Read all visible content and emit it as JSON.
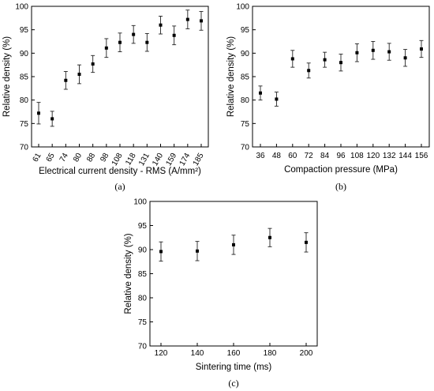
{
  "chart_data": [
    {
      "type": "scatter",
      "panel_label": "(a)",
      "xlabel": "Electrical current density - RMS (A/mm²)",
      "ylabel": "Relative density (%)",
      "ylim": [
        70,
        100
      ],
      "yticks": [
        "70",
        "75",
        "80",
        "85",
        "90",
        "95",
        "100"
      ],
      "categories": [
        "61",
        "65",
        "74",
        "80",
        "88",
        "98",
        "108",
        "118",
        "131",
        "140",
        "159",
        "174",
        "185"
      ],
      "values": [
        77.2,
        76.0,
        84.2,
        85.5,
        87.7,
        91.1,
        92.3,
        94.0,
        92.3,
        96.0,
        93.8,
        97.2,
        96.9
      ],
      "errors": [
        2.3,
        1.6,
        1.9,
        2.0,
        1.8,
        2.0,
        2.0,
        1.9,
        1.9,
        1.9,
        2.0,
        2.0,
        2.0
      ],
      "tick_rotation": -60,
      "grid": false
    },
    {
      "type": "scatter",
      "panel_label": "(b)",
      "xlabel": "Compaction pressure (MPa)",
      "ylabel": "Relative density (%)",
      "ylim": [
        70,
        100
      ],
      "yticks": [
        "70",
        "75",
        "80",
        "85",
        "90",
        "95",
        "100"
      ],
      "categories": [
        "36",
        "48",
        "60",
        "72",
        "84",
        "96",
        "108",
        "120",
        "132",
        "144",
        "156"
      ],
      "values": [
        81.5,
        80.2,
        88.8,
        86.3,
        88.6,
        88.0,
        90.1,
        90.6,
        90.3,
        89.0,
        90.9
      ],
      "errors": [
        1.5,
        1.5,
        1.8,
        1.6,
        1.6,
        1.8,
        1.9,
        1.9,
        1.8,
        1.8,
        1.8
      ],
      "tick_rotation": 0,
      "grid": false
    },
    {
      "type": "scatter",
      "panel_label": "(c)",
      "xlabel": "Sintering time (ms)",
      "ylabel": "Relative density (%)",
      "ylim": [
        70,
        100
      ],
      "yticks": [
        "70",
        "75",
        "80",
        "85",
        "90",
        "95",
        "100"
      ],
      "categories": [
        "120",
        "140",
        "160",
        "180",
        "200"
      ],
      "values": [
        89.6,
        89.7,
        91.0,
        92.5,
        91.5
      ],
      "errors": [
        2.0,
        2.0,
        2.0,
        1.9,
        2.0
      ],
      "tick_rotation": 0,
      "grid": false
    }
  ]
}
